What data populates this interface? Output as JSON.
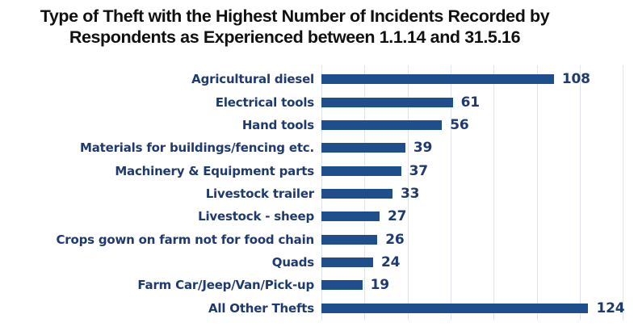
{
  "title": {
    "line1": "Type of Theft with the Highest Number of Incidents Recorded by",
    "line2": "Respondents as Experienced between 1.1.14 and 31.5.16"
  },
  "colors": {
    "background": "#ffffff",
    "title_text": "#111111",
    "label_text": "#1e3a6e",
    "bar": "#1e4e8c",
    "gridline": "#dfe3ee"
  },
  "chart_data": {
    "type": "bar",
    "orientation": "horizontal",
    "title": "Type of Theft with the Highest Number of Incidents Recorded by Respondents as Experienced between 1.1.14 and 31.5.16",
    "categories": [
      "Agricultural diesel",
      "Electrical tools",
      "Hand tools",
      "Materials for buildings/fencing etc.",
      "Machinery & Equipment parts",
      "Livestock trailer",
      "Livestock - sheep",
      "Crops gown on farm not for food chain",
      "Quads",
      "Farm Car/Jeep/Van/Pick-up",
      "All Other Thefts"
    ],
    "values": [
      108,
      61,
      56,
      39,
      37,
      33,
      27,
      26,
      24,
      19,
      124
    ],
    "xlabel": "",
    "ylabel": "",
    "xlim": [
      0,
      140
    ],
    "gridline_interval": 20,
    "grid": true,
    "legend": false,
    "data_labels": true,
    "axis_tick_labels_visible": false
  }
}
